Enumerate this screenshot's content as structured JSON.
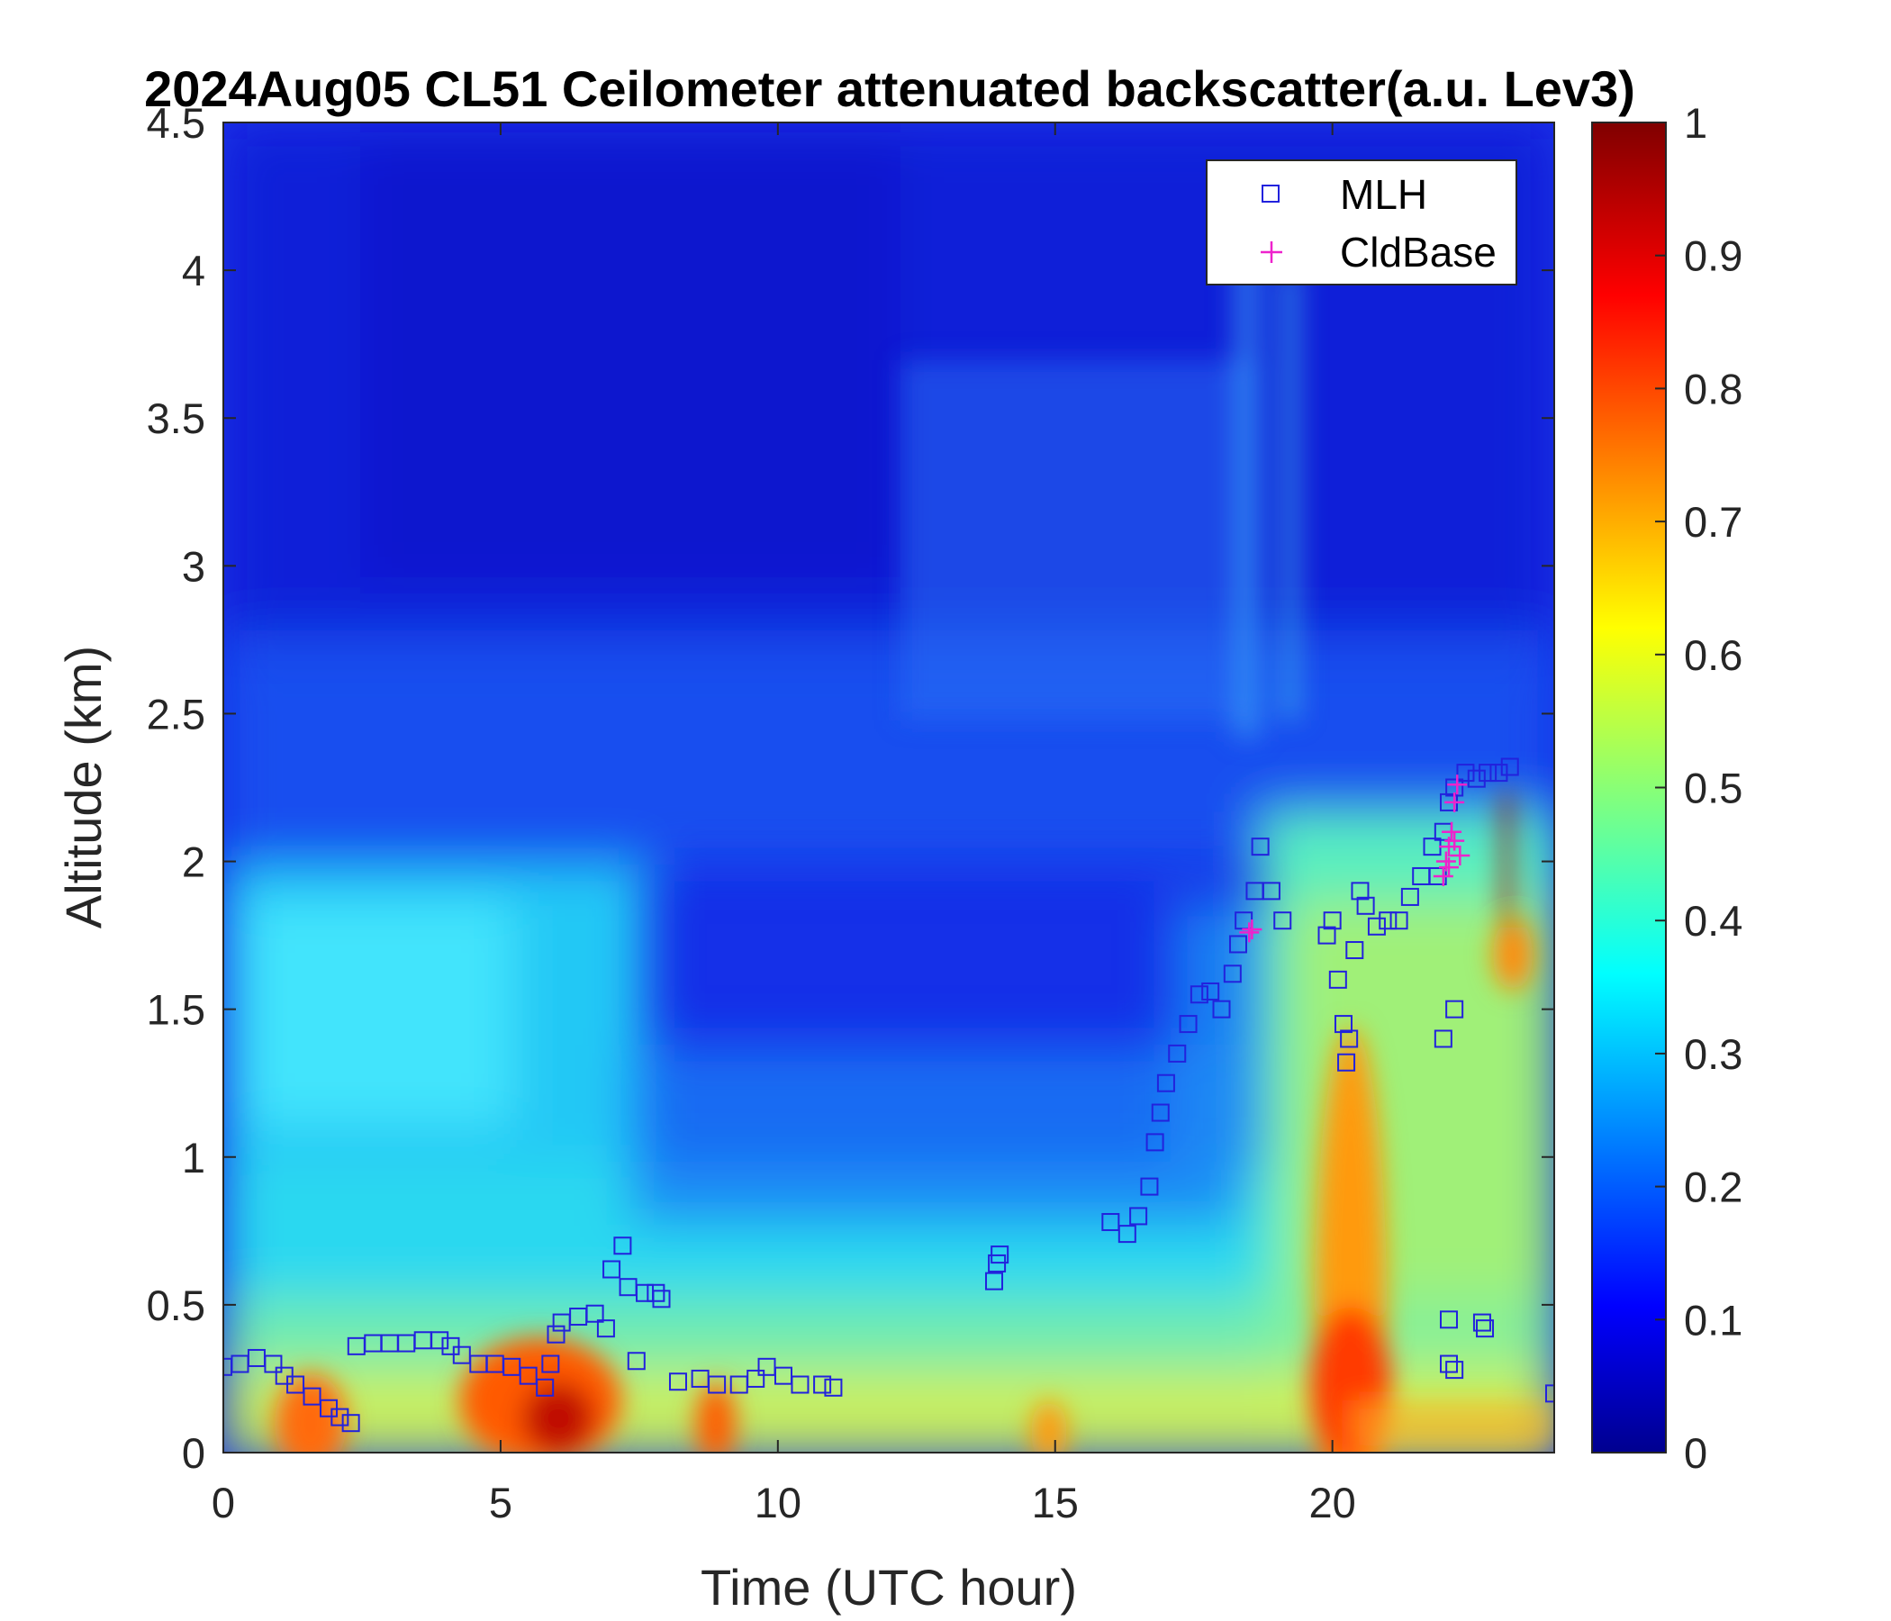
{
  "chart_data": {
    "type": "heatmap",
    "title": "2024Aug05 CL51 Ceilometer attenuated backscatter(a.u. Lev3)",
    "xlabel": "Time (UTC hour)",
    "ylabel": "Altitude (km)",
    "xlim": [
      0,
      24
    ],
    "ylim": [
      0,
      4.5
    ],
    "x_ticks": [
      "0",
      "5",
      "10",
      "15",
      "20"
    ],
    "x_tick_values": [
      0,
      5,
      10,
      15,
      20
    ],
    "y_ticks": [
      "0",
      "0.5",
      "1",
      "1.5",
      "2",
      "2.5",
      "3",
      "3.5",
      "4",
      "4.5"
    ],
    "y_tick_values": [
      0,
      0.5,
      1,
      1.5,
      2,
      2.5,
      3,
      3.5,
      4,
      4.5
    ],
    "colorbar": {
      "colormap": "jet",
      "range": [
        0,
        1
      ],
      "ticks": [
        "0",
        "0.1",
        "0.2",
        "0.3",
        "0.4",
        "0.5",
        "0.6",
        "0.7",
        "0.8",
        "0.9",
        "1"
      ],
      "tick_values": [
        0,
        0.1,
        0.2,
        0.3,
        0.4,
        0.5,
        0.6,
        0.7,
        0.8,
        0.9,
        1
      ]
    },
    "legend": {
      "position": "top-right",
      "entries": [
        "MLH",
        "CldBase"
      ]
    },
    "series": [
      {
        "name": "MLH",
        "marker": "square",
        "color": "#2222dd",
        "points": [
          [
            0.0,
            0.29
          ],
          [
            0.3,
            0.3
          ],
          [
            0.6,
            0.32
          ],
          [
            0.9,
            0.3
          ],
          [
            1.1,
            0.26
          ],
          [
            1.3,
            0.23
          ],
          [
            1.6,
            0.19
          ],
          [
            1.9,
            0.15
          ],
          [
            2.1,
            0.12
          ],
          [
            2.3,
            0.1
          ],
          [
            2.4,
            0.36
          ],
          [
            2.7,
            0.37
          ],
          [
            3.0,
            0.37
          ],
          [
            3.3,
            0.37
          ],
          [
            3.6,
            0.38
          ],
          [
            3.9,
            0.38
          ],
          [
            4.1,
            0.36
          ],
          [
            4.3,
            0.33
          ],
          [
            4.6,
            0.3
          ],
          [
            4.9,
            0.3
          ],
          [
            5.2,
            0.29
          ],
          [
            5.5,
            0.26
          ],
          [
            5.8,
            0.22
          ],
          [
            5.9,
            0.3
          ],
          [
            6.0,
            0.4
          ],
          [
            6.1,
            0.44
          ],
          [
            6.4,
            0.46
          ],
          [
            6.7,
            0.47
          ],
          [
            6.9,
            0.42
          ],
          [
            7.0,
            0.62
          ],
          [
            7.2,
            0.7
          ],
          [
            7.3,
            0.56
          ],
          [
            7.45,
            0.31
          ],
          [
            7.6,
            0.54
          ],
          [
            7.8,
            0.54
          ],
          [
            7.9,
            0.52
          ],
          [
            8.2,
            0.24
          ],
          [
            8.6,
            0.25
          ],
          [
            8.9,
            0.23
          ],
          [
            9.3,
            0.23
          ],
          [
            9.6,
            0.25
          ],
          [
            9.8,
            0.29
          ],
          [
            10.1,
            0.26
          ],
          [
            10.4,
            0.23
          ],
          [
            10.8,
            0.23
          ],
          [
            11.0,
            0.22
          ],
          [
            13.9,
            0.58
          ],
          [
            13.95,
            0.64
          ],
          [
            14.0,
            0.67
          ],
          [
            16.0,
            0.78
          ],
          [
            16.3,
            0.74
          ],
          [
            16.5,
            0.8
          ],
          [
            16.7,
            0.9
          ],
          [
            16.8,
            1.05
          ],
          [
            16.9,
            1.15
          ],
          [
            17.0,
            1.25
          ],
          [
            17.2,
            1.35
          ],
          [
            17.4,
            1.45
          ],
          [
            17.6,
            1.55
          ],
          [
            17.8,
            1.56
          ],
          [
            18.0,
            1.5
          ],
          [
            18.2,
            1.62
          ],
          [
            18.3,
            1.72
          ],
          [
            18.4,
            1.8
          ],
          [
            18.6,
            1.9
          ],
          [
            18.7,
            2.05
          ],
          [
            18.9,
            1.9
          ],
          [
            19.1,
            1.8
          ],
          [
            19.9,
            1.75
          ],
          [
            20.0,
            1.8
          ],
          [
            20.1,
            1.6
          ],
          [
            20.2,
            1.45
          ],
          [
            20.25,
            1.32
          ],
          [
            20.3,
            1.4
          ],
          [
            20.4,
            1.7
          ],
          [
            20.5,
            1.9
          ],
          [
            20.6,
            1.85
          ],
          [
            20.8,
            1.78
          ],
          [
            21.0,
            1.8
          ],
          [
            21.2,
            1.8
          ],
          [
            21.4,
            1.88
          ],
          [
            21.6,
            1.95
          ],
          [
            21.8,
            2.05
          ],
          [
            21.9,
            1.95
          ],
          [
            22.0,
            2.1
          ],
          [
            22.1,
            2.2
          ],
          [
            22.2,
            2.25
          ],
          [
            22.4,
            2.3
          ],
          [
            22.6,
            2.28
          ],
          [
            22.8,
            2.3
          ],
          [
            23.0,
            2.3
          ],
          [
            23.2,
            2.32
          ],
          [
            22.0,
            1.4
          ],
          [
            22.2,
            1.5
          ],
          [
            22.1,
            0.45
          ],
          [
            22.1,
            0.3
          ],
          [
            22.2,
            0.28
          ],
          [
            22.7,
            0.44
          ],
          [
            22.75,
            0.42
          ],
          [
            24.0,
            0.2
          ]
        ]
      },
      {
        "name": "CldBase",
        "marker": "plus",
        "color": "#ee22cc",
        "points": [
          [
            18.5,
            1.76
          ],
          [
            18.55,
            1.77
          ],
          [
            22.0,
            1.95
          ],
          [
            22.05,
            2.0
          ],
          [
            22.1,
            2.05
          ],
          [
            22.15,
            2.1
          ],
          [
            22.2,
            2.2
          ],
          [
            22.25,
            2.26
          ],
          [
            22.1,
            1.98
          ],
          [
            22.2,
            2.07
          ],
          [
            22.3,
            2.02
          ]
        ]
      }
    ]
  }
}
